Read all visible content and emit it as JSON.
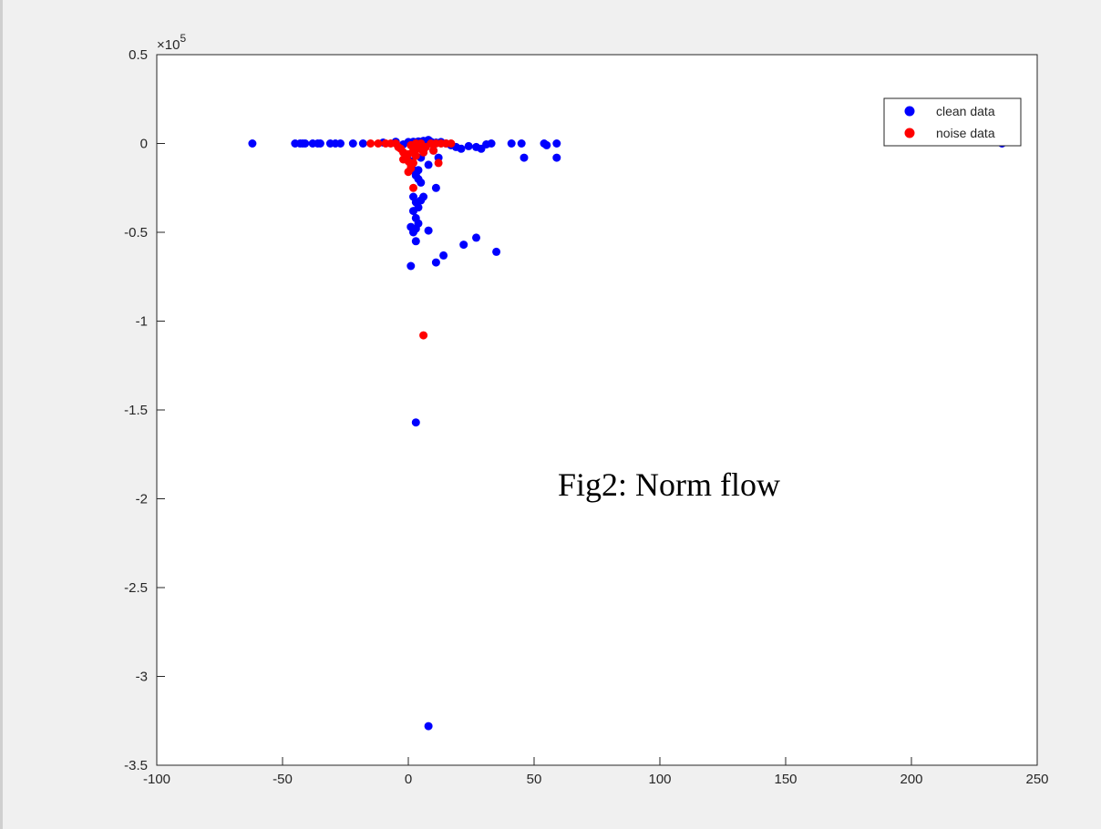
{
  "chart_data": {
    "type": "scatter",
    "xlim": [
      -100,
      250
    ],
    "ylim": [
      -3.5,
      0.5
    ],
    "xticks": [
      "-100",
      "-50",
      "0",
      "50",
      "100",
      "150",
      "200",
      "250"
    ],
    "yticks": [
      "0.5",
      "0",
      "-0.5",
      "-1",
      "-1.5",
      "-2",
      "-2.5",
      "-3",
      "-3.5"
    ],
    "y_exponent_base": "×10",
    "y_exponent_power": "5",
    "grid": false,
    "legend_position": "top-right",
    "annotation": "Fig2: Norm flow",
    "series": [
      {
        "name": "clean data",
        "color": "#0000ff",
        "points": [
          [
            -62,
            0
          ],
          [
            -45,
            0
          ],
          [
            -43,
            0
          ],
          [
            -42,
            0
          ],
          [
            -41,
            0
          ],
          [
            -38,
            0
          ],
          [
            -36,
            0
          ],
          [
            -35,
            0
          ],
          [
            -31,
            0
          ],
          [
            -29,
            0
          ],
          [
            -27,
            0
          ],
          [
            -22,
            0
          ],
          [
            -18,
            0
          ],
          [
            -10,
            0.005
          ],
          [
            -5,
            0.01
          ],
          [
            -2,
            -0.005
          ],
          [
            0,
            0.008
          ],
          [
            2,
            0.01
          ],
          [
            4,
            0.012
          ],
          [
            6,
            0.015
          ],
          [
            8,
            0.02
          ],
          [
            9,
            0.01
          ],
          [
            11,
            0.005
          ],
          [
            13,
            0.008
          ],
          [
            15,
            0
          ],
          [
            17,
            -0.01
          ],
          [
            19,
            -0.02
          ],
          [
            21,
            -0.03
          ],
          [
            24,
            -0.015
          ],
          [
            27,
            -0.02
          ],
          [
            29,
            -0.03
          ],
          [
            31,
            -0.005
          ],
          [
            33,
            0
          ],
          [
            41,
            0
          ],
          [
            45,
            0
          ],
          [
            46,
            -0.08
          ],
          [
            54,
            0
          ],
          [
            55,
            -0.01
          ],
          [
            59,
            0
          ],
          [
            59,
            -0.08
          ],
          [
            236,
            0
          ],
          [
            1,
            -0.1
          ],
          [
            2,
            -0.15
          ],
          [
            3,
            -0.18
          ],
          [
            4,
            -0.2
          ],
          [
            5,
            -0.22
          ],
          [
            2,
            -0.3
          ],
          [
            3,
            -0.33
          ],
          [
            4,
            -0.36
          ],
          [
            5,
            -0.32
          ],
          [
            6,
            -0.3
          ],
          [
            2,
            -0.38
          ],
          [
            3,
            -0.42
          ],
          [
            11,
            -0.25
          ],
          [
            4,
            -0.45
          ],
          [
            1,
            -0.47
          ],
          [
            3,
            -0.48
          ],
          [
            2,
            -0.5
          ],
          [
            8,
            -0.49
          ],
          [
            3,
            -0.55
          ],
          [
            1,
            -0.69
          ],
          [
            11,
            -0.67
          ],
          [
            14,
            -0.63
          ],
          [
            22,
            -0.57
          ],
          [
            27,
            -0.53
          ],
          [
            35,
            -0.61
          ],
          [
            4,
            -0.15
          ],
          [
            6,
            -0.05
          ],
          [
            5,
            -0.08
          ],
          [
            8,
            -0.12
          ],
          [
            12,
            -0.08
          ],
          [
            10,
            -0.04
          ],
          [
            3,
            -1.57
          ],
          [
            8,
            -3.28
          ]
        ]
      },
      {
        "name": "noise data",
        "color": "#ff0000",
        "points": [
          [
            -15,
            0
          ],
          [
            -12,
            0
          ],
          [
            -9,
            0
          ],
          [
            -7,
            0
          ],
          [
            -5,
            0
          ],
          [
            -4,
            -0.02
          ],
          [
            -3,
            -0.03
          ],
          [
            -2,
            -0.05
          ],
          [
            -1,
            -0.08
          ],
          [
            0,
            -0.1
          ],
          [
            1,
            -0.12
          ],
          [
            -2,
            -0.09
          ],
          [
            0,
            -0.06
          ],
          [
            2,
            -0.04
          ],
          [
            1,
            -0.01
          ],
          [
            3,
            0
          ],
          [
            5,
            0
          ],
          [
            7,
            -0.02
          ],
          [
            9,
            0
          ],
          [
            11,
            0
          ],
          [
            13,
            0
          ],
          [
            15,
            0
          ],
          [
            17,
            0
          ],
          [
            4,
            -0.03
          ],
          [
            6,
            -0.05
          ],
          [
            3,
            -0.07
          ],
          [
            2,
            -0.11
          ],
          [
            1,
            -0.14
          ],
          [
            0,
            -0.16
          ],
          [
            10,
            -0.04
          ],
          [
            12,
            -0.11
          ],
          [
            2,
            -0.25
          ],
          [
            6,
            -1.08
          ]
        ]
      }
    ]
  }
}
